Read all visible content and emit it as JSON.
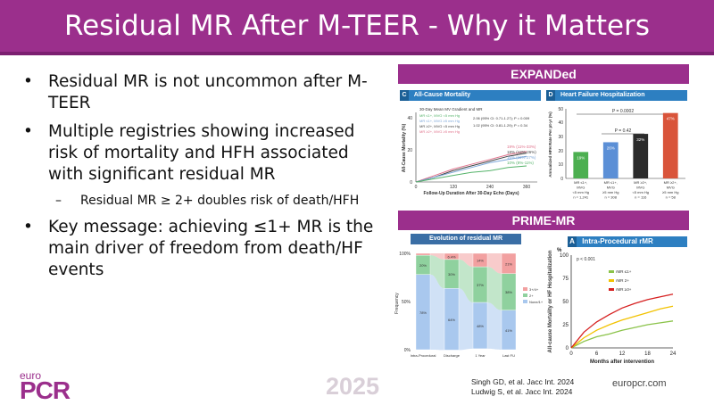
{
  "title": "Residual MR After M-TEER - Why it Matters",
  "bullets": {
    "b1": "Residual MR is not uncommon after M-TEER",
    "b2": "Multiple registries showing increased risk of mortality and HFH associated with significant residual MR",
    "b2_sub": "Residual MR ≥ 2+ doubles risk of death/HFH",
    "b3": "Key message: achieving ≤1+ MR is the main driver of freedom from death/HF events"
  },
  "expanded": {
    "banner": "EXPANDed",
    "panel_c": {
      "letter": "C",
      "title": "All-Cause Mortality",
      "legend_title": "30-Day Mean MV Gradient and MR",
      "legend": [
        "MR ≤1+, MVG <5 mm Hg",
        "MR ≤1+, MVG ≥5 mm Hg",
        "MR ≥2+, MVG <5 mm Hg",
        "MR ≥2+, MVG ≥5 mm Hg"
      ],
      "hr1": "2.06 (95% CI: 0.71-1.27); P = 0.009",
      "hr2": "1.02 (95% CI: 0.81-1.29); P = 0.34",
      "ylabel": "All-Cause Mortality (%)",
      "xlabel": "Follow-Up Duration After 30-Day Echo (Days)",
      "yticks": [
        "0",
        "20",
        "40"
      ],
      "xticks": [
        "0",
        "120",
        "240",
        "360"
      ],
      "endpoints": [
        "19% (11%-33%)",
        "18% (12%-26%)",
        "16% (11%-27%)",
        "10% (8%-11%)"
      ]
    },
    "panel_d": {
      "letter": "D",
      "title": "Heart Failure Hospitalization",
      "ylabel": "Annualized HFH Rate Per pt-yr (%)",
      "pvalue_top": "P = 0.0002",
      "pvalue_mid": "P = 0.42",
      "yticks": [
        "0",
        "10",
        "20",
        "30",
        "40",
        "50"
      ]
    }
  },
  "prime": {
    "banner": "PRIME-MR",
    "sankey": {
      "title": "Evolution of residual MR",
      "ylabel": "Frequency",
      "yticks": [
        "0%",
        "50%",
        "100%"
      ],
      "legend": [
        "3+/4+",
        "2+",
        "None/1+"
      ],
      "cols": [
        "Intra-Procedural",
        "Discharge",
        "1 Year",
        "Last FU"
      ],
      "pct_none": [
        "78%",
        "64%",
        "48%",
        "41%"
      ],
      "pct_2": [
        "20%",
        "30%",
        "37%",
        "38%"
      ],
      "pct_3": [
        "2%",
        "6.4%",
        "14%",
        "21%"
      ]
    },
    "km": {
      "letter": "A",
      "title": "Intra-Procedural rMR",
      "pvalue": "p < 0.001",
      "yunit": "%",
      "ylabel": "All-cause Mortality or HF Hospitalization",
      "xlabel": "Months after intervention",
      "yticks": [
        "0",
        "25",
        "50",
        "75",
        "100"
      ],
      "xticks": [
        "0",
        "6",
        "12",
        "18",
        "24"
      ],
      "legend": [
        "rMR ≤1+",
        "rMR 2+",
        "rMR ≥3+"
      ]
    }
  },
  "footer": {
    "logo_top": "euro",
    "logo_main": "PCR",
    "year": "2025",
    "ref1": "Singh GD, et al. Jacc Int. 2024",
    "ref2": "Ludwig S, et al. Jacc Int. 2024",
    "site": "europcr.com"
  },
  "chart_data": [
    {
      "type": "bar",
      "title": "Heart Failure Hospitalization",
      "ylabel": "Annualized HFH Rate Per pt-yr (%)",
      "ylim": [
        0,
        50
      ],
      "categories": [
        "MR ≤1+, MVG <5 mm Hg n = 1,241",
        "MR ≤1+, MVG ≥5 mm Hg n = 308",
        "MR ≥2+, MVG <5 mm Hg n = 116",
        "MR ≥2+, MVG ≥5 mm Hg n = 58"
      ],
      "category_lines": [
        [
          "MR ≤1+,",
          "MVG",
          "<5 mm Hg",
          "n = 1,241"
        ],
        [
          "MR ≤1+,",
          "MVG",
          "≥5 mm Hg",
          "n = 308"
        ],
        [
          "MR ≥2+,",
          "MVG",
          "<5 mm Hg",
          "n = 116"
        ],
        [
          "MR ≥2+,",
          "MVG",
          "≥5 mm Hg",
          "n = 58"
        ]
      ],
      "values": [
        19,
        26,
        32,
        47
      ],
      "labels": [
        "19%",
        "26%",
        "32%",
        "47%"
      ],
      "colors": [
        "#4caf50",
        "#5b8fd6",
        "#2b2b2b",
        "#d9543a"
      ]
    },
    {
      "type": "line",
      "title": "Intra-Procedural rMR",
      "xlabel": "Months after intervention",
      "ylabel": "All-cause Mortality or HF Hospitalization",
      "xlim": [
        0,
        24
      ],
      "ylim": [
        0,
        100
      ],
      "series": [
        {
          "name": "rMR ≤1+",
          "color": "#8bc34a",
          "x": [
            0,
            3,
            6,
            9,
            12,
            15,
            18,
            21,
            24
          ],
          "y": [
            0,
            7,
            12,
            15,
            19,
            22,
            25,
            27,
            29
          ]
        },
        {
          "name": "rMR 2+",
          "color": "#f2c200",
          "x": [
            0,
            3,
            6,
            9,
            12,
            15,
            18,
            21,
            24
          ],
          "y": [
            0,
            11,
            19,
            25,
            30,
            34,
            38,
            42,
            45
          ]
        },
        {
          "name": "rMR ≥3+",
          "color": "#d62020",
          "x": [
            0,
            3,
            6,
            9,
            12,
            15,
            18,
            21,
            24
          ],
          "y": [
            0,
            17,
            28,
            36,
            43,
            48,
            52,
            55,
            58
          ]
        }
      ]
    },
    {
      "type": "line",
      "title": "All-Cause Mortality",
      "xlabel": "Follow-Up Duration After 30-Day Echo (Days)",
      "ylabel": "All-Cause Mortality (%)",
      "xlim": [
        0,
        360
      ],
      "ylim": [
        0,
        40
      ],
      "series": [
        {
          "color": "#e0708a",
          "x": [
            0,
            60,
            120,
            180,
            240,
            300,
            360
          ],
          "y": [
            0,
            4,
            8,
            11,
            14,
            17,
            19
          ]
        },
        {
          "color": "#444444",
          "x": [
            0,
            60,
            120,
            180,
            240,
            300,
            360
          ],
          "y": [
            0,
            3,
            7,
            10,
            13,
            16,
            18
          ]
        },
        {
          "color": "#7da7d9",
          "x": [
            0,
            60,
            120,
            180,
            240,
            300,
            360
          ],
          "y": [
            0,
            3,
            6,
            9,
            12,
            14,
            16
          ]
        },
        {
          "color": "#55b36a",
          "x": [
            0,
            60,
            120,
            180,
            240,
            300,
            360
          ],
          "y": [
            0,
            2,
            4,
            6,
            7,
            9,
            10
          ]
        }
      ]
    },
    {
      "type": "area",
      "title": "Evolution of residual MR",
      "ylabel": "Frequency",
      "categories": [
        "Intra-Procedural",
        "Discharge",
        "1 Year",
        "Last FU"
      ],
      "series": [
        {
          "name": "None/1+",
          "values": [
            78,
            64,
            48,
            41
          ],
          "color": "#a9c8ee"
        },
        {
          "name": "2+",
          "values": [
            20,
            30,
            37,
            38
          ],
          "color": "#8fd19e"
        },
        {
          "name": "3+/4+",
          "values": [
            2,
            6.4,
            14,
            21
          ],
          "color": "#f2a0a0"
        }
      ]
    }
  ]
}
